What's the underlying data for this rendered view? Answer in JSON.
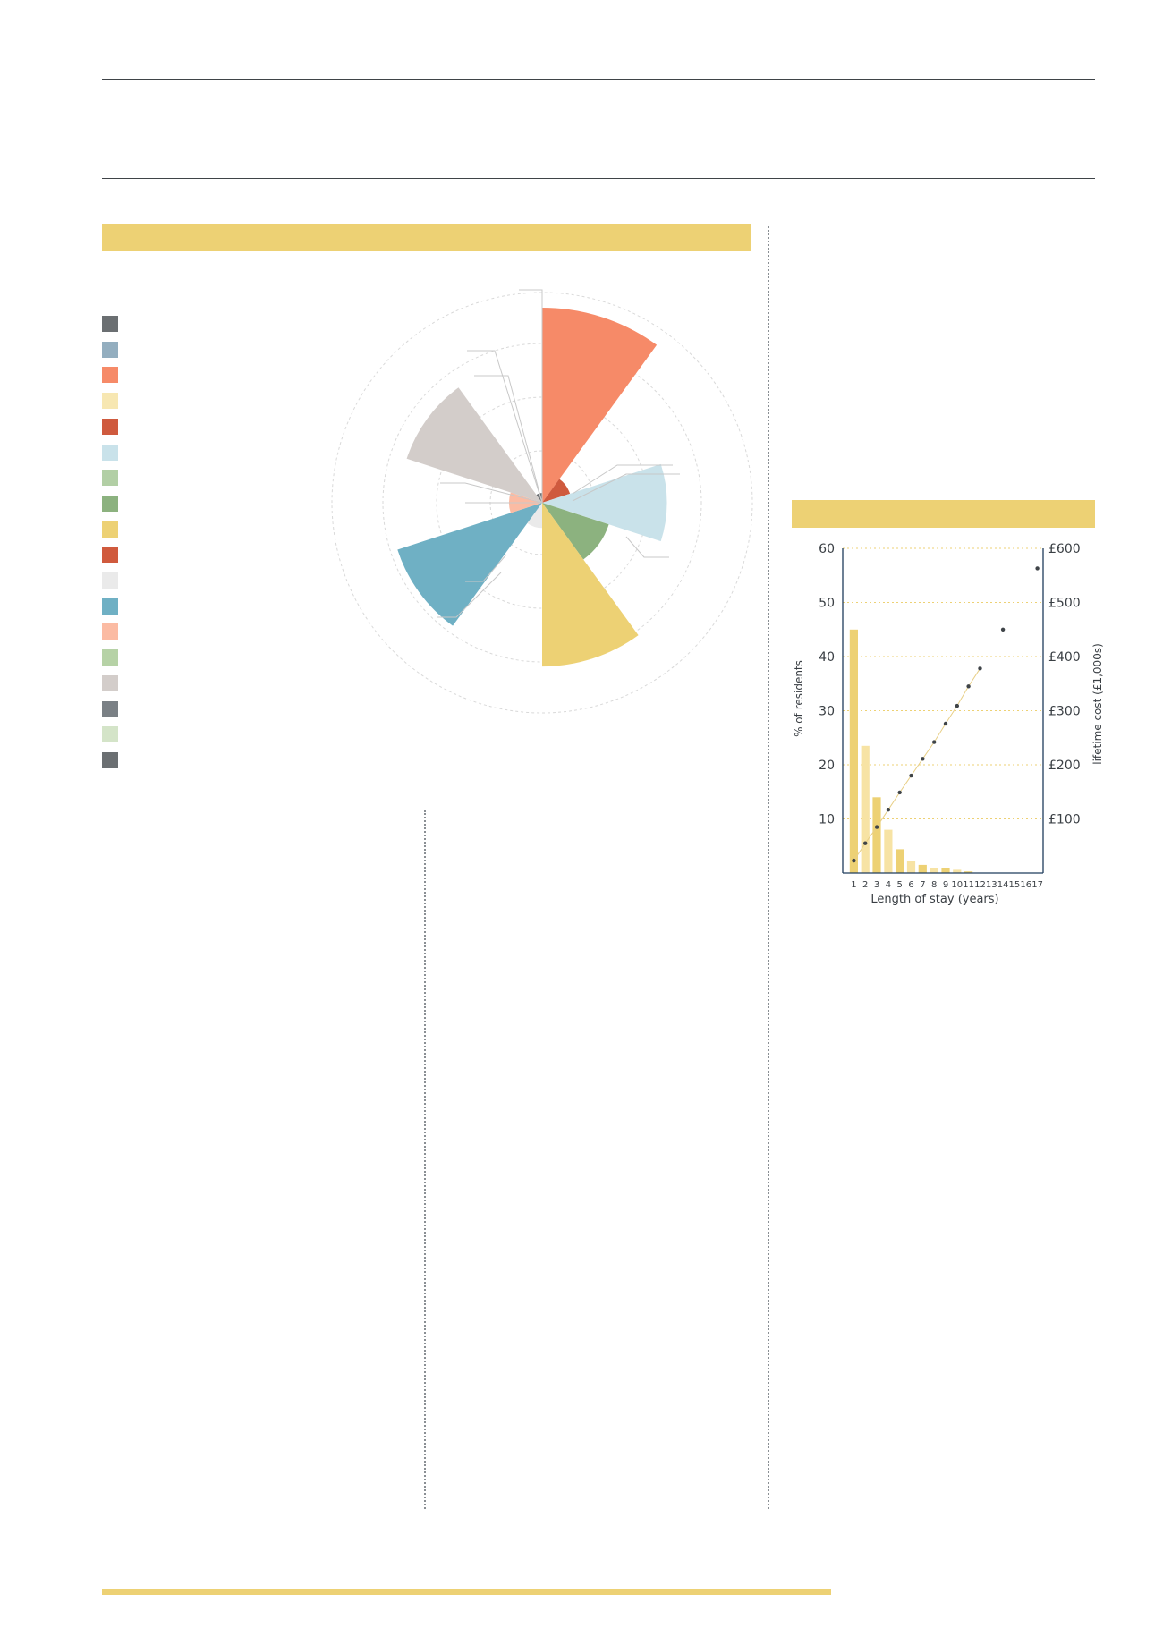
{
  "rose": {
    "legend_colors": [
      "#6b6f72",
      "#93aebf",
      "#f68a68",
      "#f7e7b2",
      "#cf5a3e",
      "#c9e2ea",
      "#b2cfa5",
      "#8cb27f",
      "#edd174",
      "#d05a3d",
      "#eaeaea",
      "#6fb0c4",
      "#fbbba3",
      "#b6d2a6",
      "#d3cdca",
      "#7a8085",
      "#d4e4c8",
      "#6b6f72"
    ],
    "chart_data": {
      "type": "polar-area",
      "scale": "relative",
      "segments": [
        {
          "color": "#f68a68",
          "value": 1.0
        },
        {
          "color": "#cf5a3e",
          "value": 0.15
        },
        {
          "color": "#c9e2ea",
          "value": 0.64
        },
        {
          "color": "#8cb27f",
          "value": 0.36
        },
        {
          "color": "#edd174",
          "value": 0.84
        },
        {
          "color": "#eaeaea",
          "value": 0.13
        },
        {
          "color": "#6fb0c4",
          "value": 0.78
        },
        {
          "color": "#fbbba3",
          "value": 0.17
        },
        {
          "color": "#d3cdca",
          "value": 0.73
        },
        {
          "color": "#6b6f72",
          "value": 0.05
        }
      ]
    }
  },
  "chart2": {
    "chart_data": {
      "type": "bar+scatter",
      "xlabel": "Length of stay (years)",
      "ylabel_left": "% of residents",
      "ylabel_right": "lifetime cost (£1,000s)",
      "categories": [
        "1",
        "2",
        "3",
        "4",
        "5",
        "6",
        "7",
        "8",
        "9",
        "10",
        "11",
        "12",
        "13",
        "14",
        "15",
        "16",
        "17"
      ],
      "bars": [
        45,
        23.5,
        14,
        8,
        4.4,
        2.3,
        1.5,
        1,
        1,
        0.6,
        0.3,
        0,
        0,
        0,
        0,
        0,
        0
      ],
      "bar_colors": [
        "#edd174",
        "#f7e3a4"
      ],
      "cost_points": [
        {
          "x": 1,
          "y": 23
        },
        {
          "x": 2,
          "y": 55
        },
        {
          "x": 3,
          "y": 85
        },
        {
          "x": 4,
          "y": 117
        },
        {
          "x": 5,
          "y": 149
        },
        {
          "x": 6,
          "y": 180
        },
        {
          "x": 7,
          "y": 211
        },
        {
          "x": 8,
          "y": 242
        },
        {
          "x": 9,
          "y": 276
        },
        {
          "x": 10,
          "y": 309
        },
        {
          "x": 11,
          "y": 345
        },
        {
          "x": 12,
          "y": 378
        },
        {
          "x": 14,
          "y": 450
        },
        {
          "x": 17,
          "y": 563
        }
      ],
      "yticks_left": [
        "10",
        "20",
        "30",
        "40",
        "50",
        "60"
      ],
      "yticks_right": [
        "£100",
        "£200",
        "£300",
        "£400",
        "£500",
        "£600"
      ],
      "ylim_left": [
        0,
        60
      ],
      "ylim_right": [
        0,
        600
      ]
    }
  }
}
